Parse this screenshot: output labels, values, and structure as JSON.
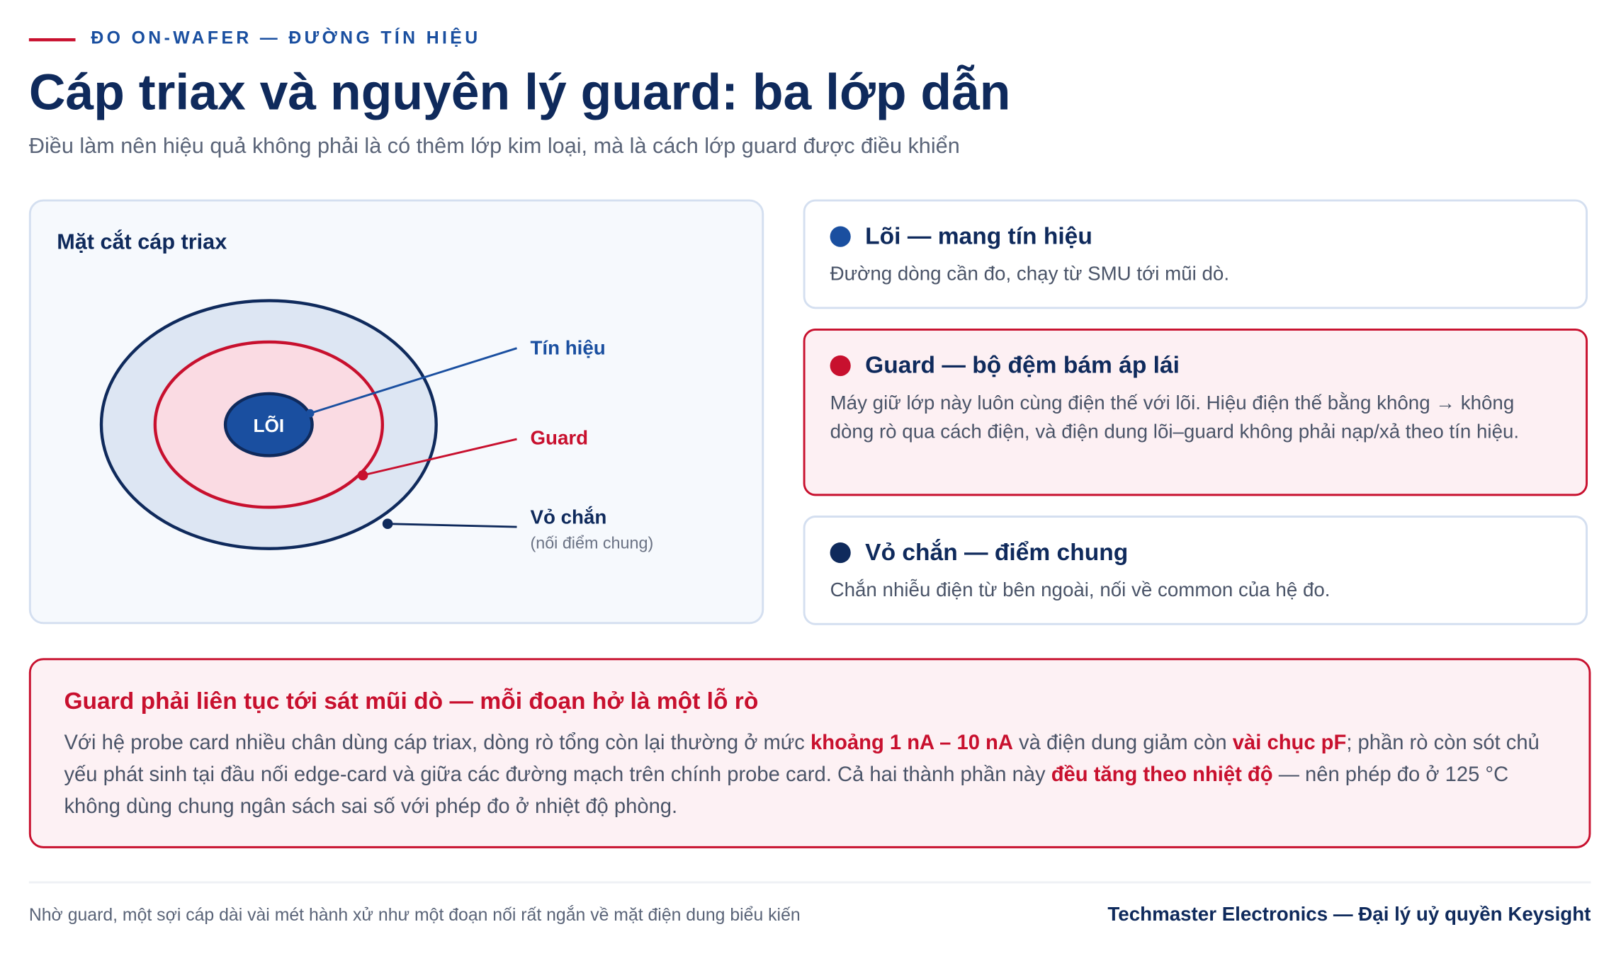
{
  "header": {
    "kicker": "ĐO ON-WAFER — ĐƯỜNG TÍN HIỆU",
    "title": "Cáp triax và nguyên lý guard: ba lớp dẫn",
    "subtitle": "Điều làm nên hiệu quả không phải là có thêm lớp kim loại, mà là cách lớp guard được điều khiển"
  },
  "diagram": {
    "title": "Mặt cắt cáp triax",
    "core_label": "LÕI",
    "signal_label": "Tín hiệu",
    "guard_label": "Guard",
    "shield_label": "Vỏ chắn",
    "shield_note": "(nối điểm chung)"
  },
  "cards": [
    {
      "title": "Lõi — mang tín hiệu",
      "body": "Đường dòng cần đo, chạy từ SMU tới mũi dò.",
      "color": "#1a4fa0"
    },
    {
      "title": "Guard — bộ đệm bám áp lái",
      "body": "Máy giữ lớp này luôn cùng điện thế với lõi. Hiệu điện thế bằng không → không dòng rò qua cách điện, và điện dung lõi–guard không phải nạp/xả theo tín hiệu.",
      "color": "#c8102e"
    },
    {
      "title": "Vỏ chắn — điểm chung",
      "body": "Chắn nhiễu điện từ bên ngoài, nối về common của hệ đo.",
      "color": "#0f2a5c"
    }
  ],
  "callout": {
    "title": "Guard phải liên tục tới sát mũi dò — mỗi đoạn hở là một lỗ rò",
    "body": [
      "Với hệ probe card nhiều chân dùng cáp triax, dòng rò tổng còn lại thường ở mức ",
      "khoảng 1 nA – 10 nA",
      " và điện dung giảm còn ",
      "vài chục pF",
      "; phần rò còn sót chủ yếu phát sinh tại đầu nối edge-card và giữa các đường mạch trên chính probe card. Cả hai thành phần này ",
      "đều tăng theo nhiệt độ",
      " — nên phép đo ở 125 °C không dùng chung ngân sách sai số với phép đo ở nhiệt độ phòng."
    ]
  },
  "footer": {
    "note": "Nhờ guard, một sợi cáp dài vài mét hành xử như một đoạn nối rất ngắn về mặt điện dung biểu kiến",
    "brand": "Techmaster Electronics — Đại lý uỷ quyền Keysight"
  }
}
